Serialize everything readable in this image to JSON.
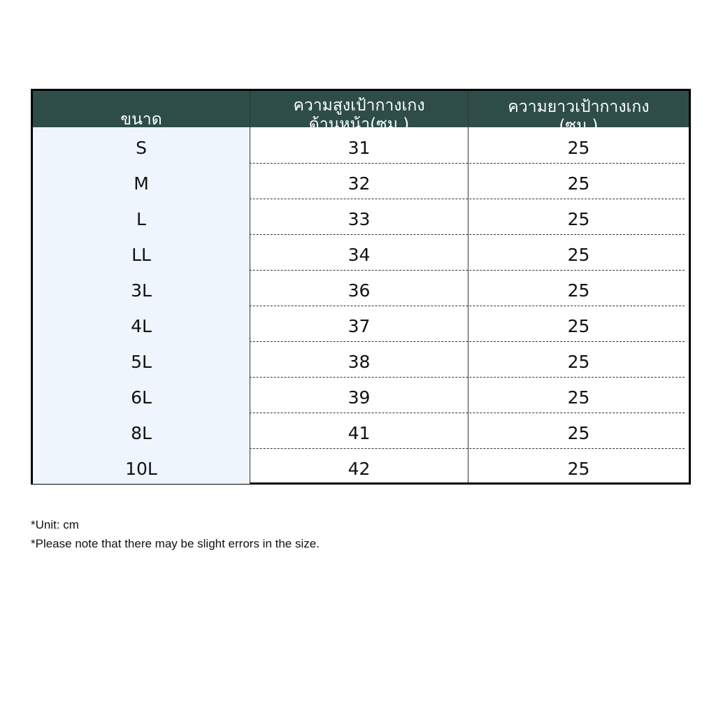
{
  "table": {
    "header_bg": "#2e4d48",
    "size_col_bg": "#eef5fd",
    "headers": [
      [
        "ขนาด"
      ],
      [
        "ความสูงเป้ากางเกง",
        "ด้านหน้า(ซม.)"
      ],
      [
        "ความยาวเป้ากางเกง",
        "(ซม.)"
      ]
    ],
    "rows": [
      [
        "S",
        "31",
        "25"
      ],
      [
        "M",
        "32",
        "25"
      ],
      [
        "L",
        "33",
        "25"
      ],
      [
        "LL",
        "34",
        "25"
      ],
      [
        "3L",
        "36",
        "25"
      ],
      [
        "4L",
        "37",
        "25"
      ],
      [
        "5L",
        "38",
        "25"
      ],
      [
        "6L",
        "39",
        "25"
      ],
      [
        "8L",
        "41",
        "25"
      ],
      [
        "10L",
        "42",
        "25"
      ]
    ]
  },
  "notes": [
    "*Unit: cm",
    "*Please note that there may be slight errors in the size."
  ]
}
